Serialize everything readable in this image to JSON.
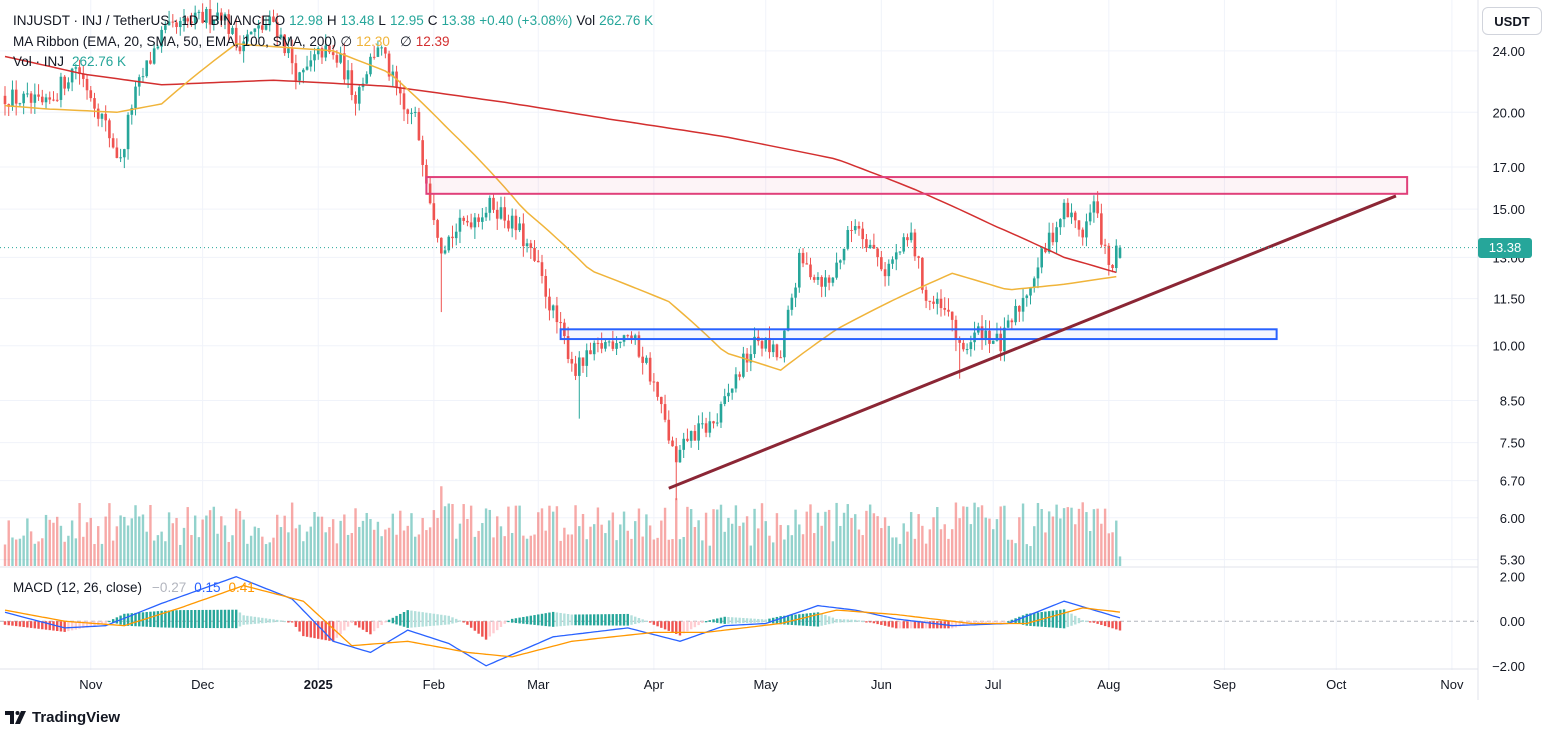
{
  "header": {
    "symbol_line": "INJUSDT · INJ / TetherUS · 1D · BINANCE",
    "o_label": "O",
    "o_value": "12.98",
    "h_label": "H",
    "h_value": "13.48",
    "l_label": "L",
    "l_value": "12.95",
    "c_label": "C",
    "c_value": "13.38",
    "change": "+0.40 (+3.08%)",
    "vol_label": "Vol",
    "vol_value": "262.76 K",
    "ma_ribbon_label": "MA Ribbon (EMA, 20, SMA, 50, EMA, 100, SMA, 200)",
    "ma_symbol": "∅",
    "ma_value_1": "12.30",
    "ma_value_2": "12.39",
    "vol_line_label": "Vol · INJ",
    "vol_line_value": "262.76 K",
    "macd_label": "MACD (12, 26, close)",
    "macd_hist": "−0.27",
    "macd_line": "0.15",
    "macd_signal": "0.41"
  },
  "price_scale": {
    "currency_button": "USDT",
    "last_price": "13.38",
    "ticks": [
      "24.00",
      "20.00",
      "17.00",
      "15.00",
      "13.00",
      "11.50",
      "10.00",
      "8.50",
      "7.50",
      "6.70",
      "6.00",
      "5.30"
    ],
    "macd_ticks": [
      "2.00",
      "0.00",
      "−2.00"
    ]
  },
  "time_scale": {
    "labels": [
      "Nov",
      "Dec",
      "2025",
      "Feb",
      "Mar",
      "Apr",
      "May",
      "Jun",
      "Jul",
      "Aug",
      "Sep",
      "Oct",
      "Nov"
    ]
  },
  "branding": {
    "name": "TradingView"
  },
  "colors": {
    "up": "#26a69a",
    "down": "#ef5350",
    "ema20": "#f0b43a",
    "sma200": "#d32f2f",
    "resistance_box": "#e0407a",
    "support_box": "#2962ff",
    "trendline": "#8b2635",
    "macd_line": "#2962ff",
    "signal_line": "#ff9800"
  },
  "chart_data": {
    "type": "candlestick",
    "x_start": "2024-10-09",
    "x_end": "2025-11-08",
    "y_scale": "log",
    "ylim": [
      5.2,
      27.5
    ],
    "last_close": 13.38,
    "anchors": [
      [
        "2024-10-09",
        21.0
      ],
      [
        "2024-10-20",
        20.3
      ],
      [
        "2024-10-28",
        23.0
      ],
      [
        "2024-11-03",
        20.2
      ],
      [
        "2024-11-09",
        17.2
      ],
      [
        "2024-11-12",
        20.5
      ],
      [
        "2024-11-20",
        25.2
      ],
      [
        "2024-12-06",
        27.0
      ],
      [
        "2024-12-10",
        24.5
      ],
      [
        "2024-12-20",
        26.2
      ],
      [
        "2024-12-27",
        22.0
      ],
      [
        "2025-01-02",
        24.0
      ],
      [
        "2025-01-07",
        23.2
      ],
      [
        "2025-01-11",
        21.0
      ],
      [
        "2025-01-17",
        24.5
      ],
      [
        "2025-01-24",
        20.0
      ],
      [
        "2025-01-27",
        19.6
      ],
      [
        "2025-01-31",
        15.6
      ],
      [
        "2025-02-03",
        13.5
      ],
      [
        "2025-02-10",
        14.5
      ],
      [
        "2025-02-17",
        15.2
      ],
      [
        "2025-02-24",
        14.0
      ],
      [
        "2025-03-01",
        12.5
      ],
      [
        "2025-03-05",
        11.0
      ],
      [
        "2025-03-11",
        9.3
      ],
      [
        "2025-03-18",
        10.0
      ],
      [
        "2025-03-25",
        10.4
      ],
      [
        "2025-03-30",
        9.5
      ],
      [
        "2025-04-07",
        7.0
      ],
      [
        "2025-04-10",
        7.6
      ],
      [
        "2025-04-18",
        8.0
      ],
      [
        "2025-04-25",
        9.5
      ],
      [
        "2025-04-29",
        10.2
      ],
      [
        "2025-05-05",
        9.6
      ],
      [
        "2025-05-10",
        12.8
      ],
      [
        "2025-05-18",
        12.0
      ],
      [
        "2025-05-25",
        14.5
      ],
      [
        "2025-06-02",
        12.5
      ],
      [
        "2025-06-09",
        13.8
      ],
      [
        "2025-06-13",
        11.5
      ],
      [
        "2025-06-20",
        10.8
      ],
      [
        "2025-06-22",
        9.8
      ],
      [
        "2025-06-28",
        10.5
      ],
      [
        "2025-07-03",
        10.0
      ],
      [
        "2025-07-09",
        11.5
      ],
      [
        "2025-07-14",
        13.0
      ],
      [
        "2025-07-20",
        15.0
      ],
      [
        "2025-07-25",
        14.0
      ],
      [
        "2025-07-28",
        15.2
      ],
      [
        "2025-08-01",
        12.5
      ],
      [
        "2025-08-04",
        13.38
      ]
    ],
    "ema20_anchors": [
      [
        "2024-10-09",
        20.4
      ],
      [
        "2024-10-20",
        20.2
      ],
      [
        "2024-11-08",
        20.0
      ],
      [
        "2024-11-20",
        20.5
      ],
      [
        "2024-12-10",
        24.5
      ],
      [
        "2025-01-05",
        24.0
      ],
      [
        "2025-01-20",
        22.5
      ],
      [
        "2025-02-05",
        19.0
      ],
      [
        "2025-02-25",
        15.0
      ],
      [
        "2025-03-15",
        12.5
      ],
      [
        "2025-04-05",
        11.4
      ],
      [
        "2025-04-20",
        9.8
      ],
      [
        "2025-05-05",
        9.3
      ],
      [
        "2025-05-20",
        10.5
      ],
      [
        "2025-06-05",
        11.5
      ],
      [
        "2025-06-20",
        12.4
      ],
      [
        "2025-07-05",
        11.8
      ],
      [
        "2025-07-20",
        12.0
      ],
      [
        "2025-08-04",
        12.3
      ]
    ],
    "sma200_anchors": [
      [
        "2024-10-09",
        23.6
      ],
      [
        "2024-10-30",
        22.4
      ],
      [
        "2024-11-20",
        21.7
      ],
      [
        "2024-12-20",
        22.0
      ],
      [
        "2025-01-20",
        21.6
      ],
      [
        "2025-02-20",
        20.6
      ],
      [
        "2025-03-20",
        19.6
      ],
      [
        "2025-04-20",
        18.6
      ],
      [
        "2025-05-20",
        17.4
      ],
      [
        "2025-06-10",
        15.9
      ],
      [
        "2025-07-01",
        14.3
      ],
      [
        "2025-07-20",
        13.0
      ],
      [
        "2025-08-04",
        12.39
      ]
    ],
    "resistance_zone": {
      "from": "2025-01-30",
      "to": "2025-10-20",
      "low": 15.7,
      "high": 16.5
    },
    "support_zone": {
      "from": "2025-03-07",
      "to": "2025-09-15",
      "low": 10.2,
      "high": 10.5
    },
    "trendline": {
      "from": [
        "2025-04-05",
        6.55
      ],
      "to": [
        "2025-10-17",
        15.6
      ]
    },
    "macd": {
      "ylim": [
        -2.1,
        2.3
      ],
      "macd_anchors": [
        [
          "2024-10-09",
          0.4
        ],
        [
          "2024-10-25",
          -0.3
        ],
        [
          "2024-11-05",
          -0.2
        ],
        [
          "2024-11-20",
          0.8
        ],
        [
          "2024-12-10",
          2.0
        ],
        [
          "2024-12-25",
          1.0
        ],
        [
          "2025-01-05",
          -0.9
        ],
        [
          "2025-01-15",
          -1.4
        ],
        [
          "2025-01-25",
          -0.4
        ],
        [
          "2025-02-05",
          -1.0
        ],
        [
          "2025-02-15",
          -2.0
        ],
        [
          "2025-03-05",
          -0.7
        ],
        [
          "2025-03-25",
          -0.3
        ],
        [
          "2025-04-08",
          -0.9
        ],
        [
          "2025-04-20",
          -0.2
        ],
        [
          "2025-05-01",
          -0.1
        ],
        [
          "2025-05-15",
          0.7
        ],
        [
          "2025-05-25",
          0.5
        ],
        [
          "2025-06-05",
          0.1
        ],
        [
          "2025-06-20",
          -0.2
        ],
        [
          "2025-07-05",
          -0.1
        ],
        [
          "2025-07-20",
          0.9
        ],
        [
          "2025-08-04",
          0.15
        ]
      ],
      "signal_anchors": [
        [
          "2024-10-09",
          0.5
        ],
        [
          "2024-10-25",
          0.0
        ],
        [
          "2024-11-10",
          -0.2
        ],
        [
          "2024-11-25",
          0.6
        ],
        [
          "2024-12-12",
          1.6
        ],
        [
          "2024-12-28",
          0.9
        ],
        [
          "2025-01-10",
          -1.1
        ],
        [
          "2025-01-25",
          -0.9
        ],
        [
          "2025-02-10",
          -1.4
        ],
        [
          "2025-02-22",
          -1.6
        ],
        [
          "2025-03-10",
          -0.9
        ],
        [
          "2025-04-01",
          -0.5
        ],
        [
          "2025-04-15",
          -0.5
        ],
        [
          "2025-05-05",
          -0.1
        ],
        [
          "2025-05-20",
          0.5
        ],
        [
          "2025-06-05",
          0.3
        ],
        [
          "2025-06-25",
          -0.1
        ],
        [
          "2025-07-10",
          -0.1
        ],
        [
          "2025-07-25",
          0.6
        ],
        [
          "2025-08-04",
          0.41
        ]
      ]
    }
  }
}
